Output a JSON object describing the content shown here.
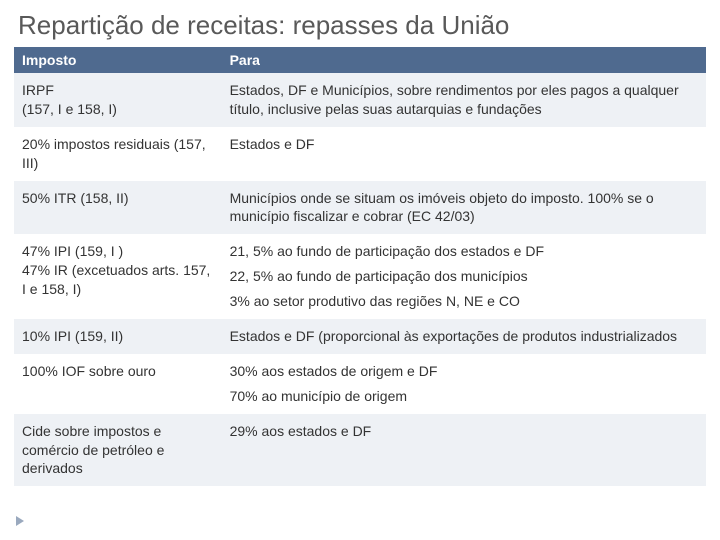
{
  "title": "Repartição de receitas: repasses da União",
  "columns": {
    "c1": "Imposto",
    "c2": "Para"
  },
  "rows": [
    {
      "c1": "IRPF\n(157, I e 158, I)",
      "c2": "Estados, DF e Municípios, sobre rendimentos por eles pagos a qualquer título, inclusive pelas suas autarquias e fundações"
    },
    {
      "c1": "20% impostos residuais (157, III)",
      "c2": "Estados e DF"
    },
    {
      "c1": "50% ITR (158, II)",
      "c2": "Municípios onde se situam os imóveis objeto do imposto. 100% se o município fiscalizar e cobrar (EC 42/03)"
    },
    {
      "c1": "47% IPI  (159, I )\n47% IR (excetuados arts. 157, I e 158, I)",
      "c2_multi": [
        "21, 5% ao fundo de participação dos estados e DF",
        "22, 5% ao fundo de participação dos municípios",
        "3% ao setor produtivo das regiões N, NE e CO"
      ]
    },
    {
      "c1": "10% IPI (159, II)",
      "c2": "Estados e DF (proporcional às exportações de produtos industrializados"
    },
    {
      "c1": "100% IOF sobre ouro",
      "c2_multi": [
        "30% aos estados de origem e DF",
        "70%  ao município de origem"
      ]
    },
    {
      "c1": "Cide sobre impostos e comércio de petróleo e derivados",
      "c2": "29% aos estados e DF"
    }
  ],
  "colors": {
    "header_bg": "#4f6a8f",
    "header_fg": "#ffffff",
    "row_odd": "#eef1f5",
    "row_even": "#ffffff",
    "title_fg": "#595959",
    "text_fg": "#333333"
  }
}
